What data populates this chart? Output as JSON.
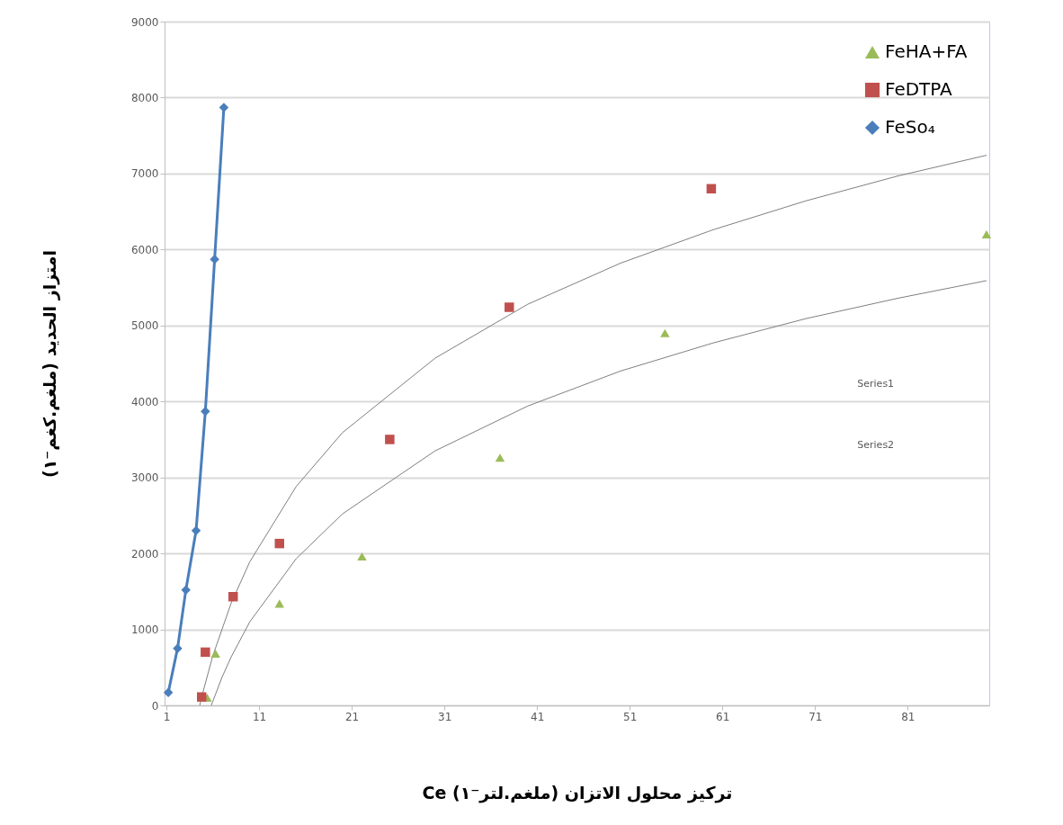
{
  "chart_data": {
    "type": "scatter",
    "xlabel": "Ce   تركيز محلول الاتزان (ملغم.لتر⁻١)",
    "ylabel": "امتزاز الحديد  (ملغم.كغم⁻١)",
    "xlim": [
      0.8,
      89.8
    ],
    "xticks": [
      1,
      11,
      21,
      31,
      41,
      51,
      61,
      71,
      81
    ],
    "ylim": [
      0,
      9000
    ],
    "yticks": [
      0,
      1000,
      2000,
      3000,
      4000,
      5000,
      6000,
      7000,
      8000,
      9000
    ],
    "grid": "y",
    "legend": "top right",
    "annotations": [
      "Series1",
      "Series2"
    ],
    "series": [
      {
        "name": "FeHA+FA",
        "marker": "triangle",
        "color": "#9bbb59",
        "x": [
          5.4,
          6.3,
          13.2,
          22.1,
          37.0,
          54.8,
          89.5
        ],
        "values": [
          100,
          680,
          1340,
          1960,
          3260,
          4900,
          6200
        ]
      },
      {
        "name": "FeDTPA",
        "marker": "square",
        "color": "#c0504d",
        "x": [
          4.8,
          5.2,
          8.2,
          13.2,
          25.1,
          38.0,
          59.8
        ],
        "values": [
          110,
          700,
          1430,
          2130,
          3500,
          5240,
          6800
        ]
      },
      {
        "name": "FeSo₄",
        "type": "line",
        "marker": "diamond",
        "color": "#4a7ebb",
        "x": [
          1.2,
          2.2,
          3.1,
          4.2,
          5.2,
          6.2,
          7.2
        ],
        "values": [
          170,
          750,
          1520,
          2300,
          3870,
          5870,
          7870
        ]
      },
      {
        "type": "line",
        "marker": "none",
        "color": "#7f7f7f",
        "x": [
          4.6,
          5,
          6,
          8,
          10,
          15,
          20,
          30,
          40,
          50,
          60,
          70,
          80,
          89.5
        ],
        "values": [
          0,
          200,
          650,
          1350,
          1890,
          2880,
          3590,
          4570,
          5280,
          5820,
          6260,
          6640,
          6970,
          7240
        ]
      },
      {
        "type": "line",
        "marker": "none",
        "color": "#7f7f7f",
        "x": [
          5.85,
          6,
          7,
          8,
          10,
          15,
          20,
          30,
          40,
          50,
          60,
          70,
          80,
          89.5
        ],
        "values": [
          0,
          50,
          370,
          640,
          1100,
          1930,
          2520,
          3350,
          3940,
          4400,
          4770,
          5090,
          5360,
          5590
        ]
      }
    ]
  }
}
